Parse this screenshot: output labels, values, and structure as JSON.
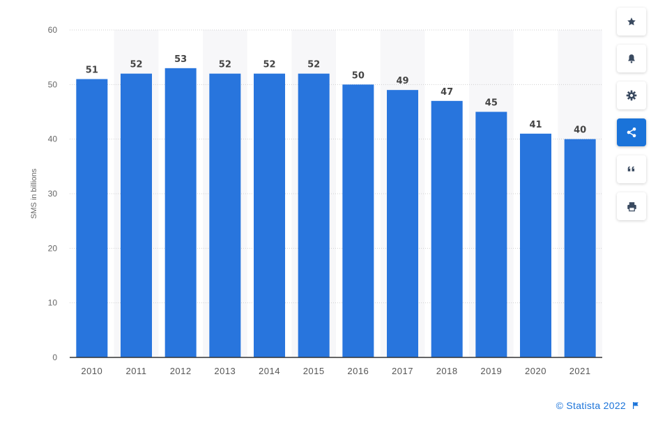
{
  "chart_data": {
    "type": "bar",
    "categories": [
      "2010",
      "2011",
      "2012",
      "2013",
      "2014",
      "2015",
      "2016",
      "2017",
      "2018",
      "2019",
      "2020",
      "2021"
    ],
    "values": [
      51,
      52,
      53,
      52,
      52,
      52,
      50,
      49,
      47,
      45,
      41,
      40
    ],
    "title": "",
    "xlabel": "",
    "ylabel": "SMS in billions",
    "ylim": [
      0,
      60
    ],
    "yticks": [
      0,
      10,
      20,
      30,
      40,
      50,
      60
    ],
    "grid": true,
    "bar_color": "#2875dd",
    "data_labels": true
  },
  "toolbar": {
    "buttons": [
      {
        "icon": "star-icon",
        "active": false
      },
      {
        "icon": "bell-icon",
        "active": false
      },
      {
        "icon": "gear-icon",
        "active": false
      },
      {
        "icon": "share-icon",
        "active": true
      },
      {
        "icon": "quote-icon",
        "active": false
      },
      {
        "icon": "print-icon",
        "active": false
      }
    ],
    "accent": "#1a73d9"
  },
  "credit": {
    "text": "© Statista 2022",
    "icon": "flag-icon"
  }
}
